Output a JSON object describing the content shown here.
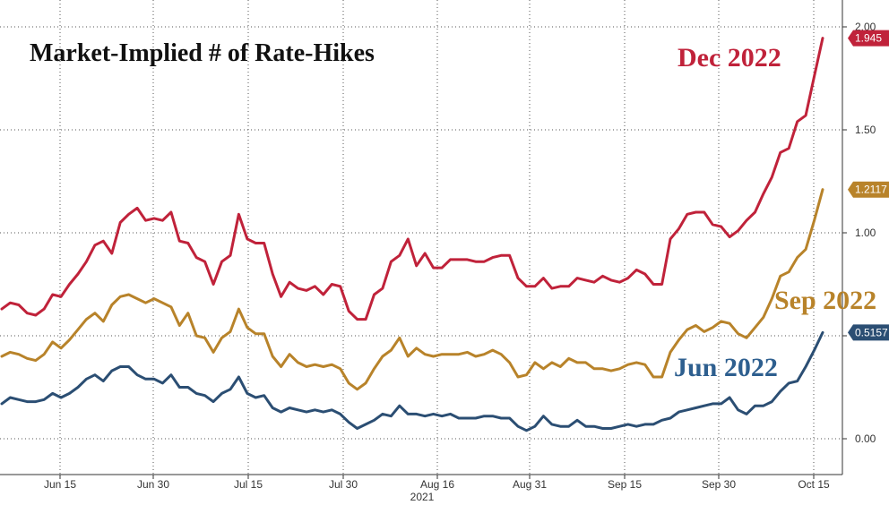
{
  "chart_data": {
    "type": "line",
    "title": "Market-Implied # of Rate-Hikes",
    "xlabel": "2021",
    "ylabel": "",
    "x_ticks": [
      "Jun 15",
      "Jun 30",
      "Jul 15",
      "Jul 30",
      "Aug 16",
      "Aug 31",
      "Sep 15",
      "Sep 30",
      "Oct 15"
    ],
    "y_ticks": [
      "0.00",
      "0.50",
      "1.00",
      "1.50",
      "2.00"
    ],
    "ylim": [
      -0.15,
      2.05
    ],
    "grid": true,
    "legend": "inline labels",
    "series": [
      {
        "name": "Dec 2022",
        "color": "#c0223a",
        "last_value_label": "1.945",
        "values": [
          0.63,
          0.66,
          0.65,
          0.61,
          0.6,
          0.63,
          0.7,
          0.69,
          0.75,
          0.8,
          0.86,
          0.94,
          0.96,
          0.9,
          1.05,
          1.09,
          1.12,
          1.06,
          1.07,
          1.06,
          1.1,
          0.96,
          0.95,
          0.88,
          0.86,
          0.75,
          0.86,
          0.89,
          1.09,
          0.97,
          0.95,
          0.95,
          0.8,
          0.69,
          0.76,
          0.73,
          0.72,
          0.74,
          0.7,
          0.75,
          0.74,
          0.62,
          0.58,
          0.58,
          0.7,
          0.73,
          0.86,
          0.89,
          0.97,
          0.84,
          0.9,
          0.83,
          0.83,
          0.87,
          0.87,
          0.87,
          0.86,
          0.86,
          0.88,
          0.89,
          0.89,
          0.78,
          0.74,
          0.74,
          0.78,
          0.73,
          0.74,
          0.74,
          0.78,
          0.77,
          0.76,
          0.79,
          0.77,
          0.76,
          0.78,
          0.82,
          0.8,
          0.75,
          0.75,
          0.97,
          1.02,
          1.09,
          1.1,
          1.1,
          1.04,
          1.03,
          0.98,
          1.01,
          1.06,
          1.1,
          1.19,
          1.27,
          1.39,
          1.41,
          1.54,
          1.57,
          1.76,
          1.945
        ]
      },
      {
        "name": "Sep 2022",
        "color": "#b8832a",
        "last_value_label": "1.2117",
        "values": [
          0.4,
          0.42,
          0.41,
          0.39,
          0.38,
          0.41,
          0.47,
          0.44,
          0.48,
          0.53,
          0.58,
          0.61,
          0.57,
          0.65,
          0.69,
          0.7,
          0.68,
          0.66,
          0.68,
          0.66,
          0.64,
          0.55,
          0.61,
          0.5,
          0.49,
          0.42,
          0.49,
          0.52,
          0.63,
          0.54,
          0.51,
          0.51,
          0.4,
          0.35,
          0.41,
          0.37,
          0.35,
          0.36,
          0.35,
          0.36,
          0.34,
          0.27,
          0.24,
          0.27,
          0.34,
          0.4,
          0.43,
          0.49,
          0.4,
          0.44,
          0.41,
          0.4,
          0.41,
          0.41,
          0.41,
          0.42,
          0.4,
          0.41,
          0.43,
          0.41,
          0.37,
          0.3,
          0.31,
          0.37,
          0.34,
          0.37,
          0.35,
          0.39,
          0.37,
          0.37,
          0.34,
          0.34,
          0.33,
          0.34,
          0.36,
          0.37,
          0.36,
          0.3,
          0.3,
          0.42,
          0.48,
          0.53,
          0.55,
          0.52,
          0.54,
          0.57,
          0.56,
          0.51,
          0.49,
          0.54,
          0.59,
          0.68,
          0.79,
          0.81,
          0.88,
          0.92,
          1.06,
          1.21
        ]
      },
      {
        "name": "Jun 2022",
        "color": "#2b4e73",
        "last_value_label": "0.5157",
        "values": [
          0.17,
          0.2,
          0.19,
          0.18,
          0.18,
          0.19,
          0.22,
          0.2,
          0.22,
          0.25,
          0.29,
          0.31,
          0.28,
          0.33,
          0.35,
          0.35,
          0.31,
          0.29,
          0.29,
          0.27,
          0.31,
          0.25,
          0.25,
          0.22,
          0.21,
          0.18,
          0.22,
          0.24,
          0.3,
          0.22,
          0.2,
          0.21,
          0.15,
          0.13,
          0.15,
          0.14,
          0.13,
          0.14,
          0.13,
          0.14,
          0.12,
          0.08,
          0.05,
          0.07,
          0.09,
          0.12,
          0.11,
          0.16,
          0.12,
          0.12,
          0.11,
          0.12,
          0.11,
          0.12,
          0.1,
          0.1,
          0.1,
          0.11,
          0.11,
          0.1,
          0.1,
          0.06,
          0.04,
          0.06,
          0.11,
          0.07,
          0.06,
          0.06,
          0.09,
          0.06,
          0.06,
          0.05,
          0.05,
          0.06,
          0.07,
          0.06,
          0.07,
          0.07,
          0.09,
          0.1,
          0.13,
          0.14,
          0.15,
          0.16,
          0.17,
          0.17,
          0.2,
          0.14,
          0.12,
          0.16,
          0.16,
          0.18,
          0.23,
          0.27,
          0.28,
          0.35,
          0.43,
          0.5157
        ]
      }
    ]
  }
}
